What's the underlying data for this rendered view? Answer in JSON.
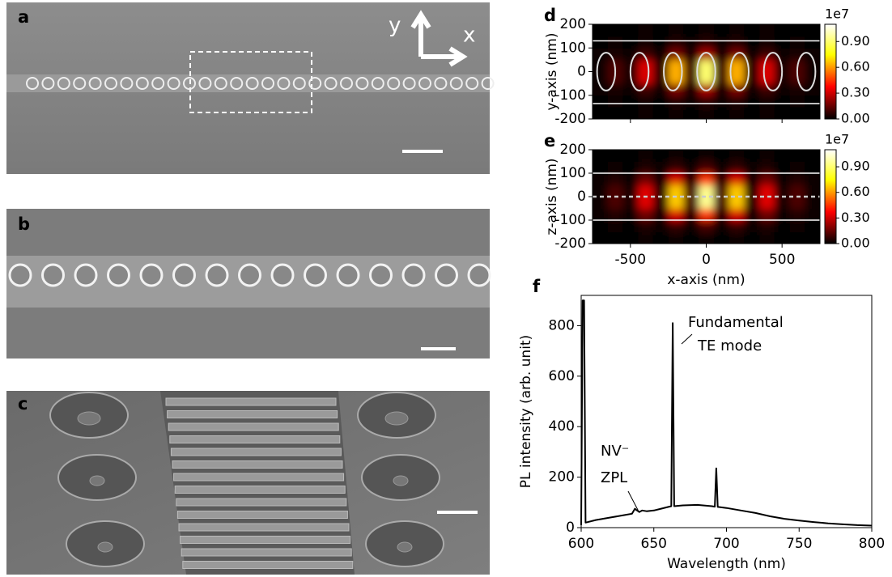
{
  "panels": [
    {
      "label": "a",
      "axis_labels": [
        "y",
        "x"
      ]
    },
    {
      "label": "b"
    },
    {
      "label": "c"
    }
  ],
  "chart_data": [
    {
      "type": "heatmap",
      "label": "d",
      "ylabel": "y-axis (nm)",
      "x": [
        -700,
        -600,
        -500,
        -400,
        -300,
        -200,
        -100,
        0,
        100,
        200,
        300,
        400,
        500,
        600,
        700
      ],
      "y": [
        -175,
        -125,
        -75,
        -25,
        25,
        75,
        125,
        175
      ],
      "z": [
        [
          0,
          0,
          0,
          0.01,
          0,
          0.01,
          0,
          0.02,
          0,
          0.01,
          0,
          0.01,
          0,
          0,
          0
        ],
        [
          0,
          0.01,
          0,
          0.02,
          0,
          0.04,
          0.01,
          0.05,
          0.01,
          0.04,
          0,
          0.02,
          0,
          0.01,
          0
        ],
        [
          0.01,
          0.03,
          0.01,
          0.09,
          0.01,
          0.18,
          0.03,
          0.25,
          0.03,
          0.18,
          0.01,
          0.09,
          0.01,
          0.03,
          0.01
        ],
        [
          0.02,
          0.11,
          0.03,
          0.32,
          0.05,
          0.63,
          0.09,
          0.9,
          0.09,
          0.63,
          0.05,
          0.32,
          0.03,
          0.11,
          0.02
        ],
        [
          0.02,
          0.11,
          0.03,
          0.32,
          0.05,
          0.63,
          0.09,
          0.9,
          0.09,
          0.63,
          0.05,
          0.32,
          0.03,
          0.11,
          0.02
        ],
        [
          0.01,
          0.03,
          0.01,
          0.09,
          0.01,
          0.18,
          0.03,
          0.25,
          0.03,
          0.18,
          0.01,
          0.09,
          0.01,
          0.03,
          0.01
        ],
        [
          0,
          0.01,
          0,
          0.02,
          0,
          0.04,
          0.01,
          0.05,
          0.01,
          0.04,
          0,
          0.02,
          0,
          0.01,
          0
        ],
        [
          0,
          0,
          0,
          0.01,
          0,
          0.01,
          0,
          0.02,
          0,
          0.01,
          0,
          0.01,
          0,
          0,
          0
        ]
      ],
      "colormap": "hot",
      "zlim": [
        0,
        1.1
      ],
      "zticks": [
        {
          "value": 0,
          "label": "0.00"
        },
        {
          "value": 0.3,
          "label": "0.30"
        },
        {
          "value": 0.6,
          "label": "0.60"
        },
        {
          "value": 0.9,
          "label": "0.90"
        }
      ],
      "colorbar_offset": "1e7",
      "xlim": [
        -750,
        750
      ],
      "xticks": [
        -500,
        0,
        500
      ],
      "xtick_labels": false,
      "ylim": [
        -200,
        200
      ],
      "yticks": [
        -200,
        -100,
        0,
        100,
        200
      ],
      "hlines": [
        130,
        -135
      ],
      "holes": {
        "x": [
          -660,
          -440,
          -220,
          0,
          220,
          440,
          660
        ],
        "rx": 60,
        "ry": 80
      }
    },
    {
      "type": "heatmap",
      "label": "e",
      "ylabel": "z-axis (nm)",
      "xlabel": "x-axis (nm)",
      "x": [
        -700,
        -600,
        -500,
        -400,
        -300,
        -200,
        -100,
        0,
        100,
        200,
        300,
        400,
        500,
        600,
        700
      ],
      "y": [
        -175,
        -125,
        -75,
        -25,
        25,
        75,
        125,
        175
      ],
      "z": [
        [
          0,
          0,
          0,
          0.01,
          0,
          0.01,
          0,
          0.02,
          0,
          0.01,
          0,
          0.01,
          0,
          0,
          0
        ],
        [
          0,
          0.01,
          0,
          0.04,
          0.01,
          0.07,
          0.01,
          0.1,
          0.01,
          0.07,
          0.01,
          0.04,
          0,
          0.01,
          0
        ],
        [
          0.01,
          0.05,
          0.01,
          0.16,
          0.02,
          0.32,
          0.05,
          0.45,
          0.05,
          0.32,
          0.02,
          0.16,
          0.01,
          0.05,
          0.01
        ],
        [
          0.02,
          0.11,
          0.03,
          0.33,
          0.05,
          0.67,
          0.1,
          0.95,
          0.1,
          0.67,
          0.05,
          0.33,
          0.03,
          0.11,
          0.02
        ],
        [
          0.02,
          0.11,
          0.03,
          0.33,
          0.05,
          0.67,
          0.1,
          0.95,
          0.1,
          0.67,
          0.05,
          0.33,
          0.03,
          0.11,
          0.02
        ],
        [
          0.01,
          0.05,
          0.01,
          0.16,
          0.02,
          0.32,
          0.05,
          0.45,
          0.05,
          0.32,
          0.02,
          0.16,
          0.01,
          0.05,
          0.01
        ],
        [
          0,
          0.01,
          0,
          0.04,
          0.01,
          0.07,
          0.01,
          0.1,
          0.01,
          0.07,
          0.01,
          0.04,
          0,
          0.01,
          0
        ],
        [
          0,
          0,
          0,
          0.01,
          0,
          0.01,
          0,
          0.02,
          0,
          0.01,
          0,
          0.01,
          0,
          0,
          0
        ]
      ],
      "colormap": "hot",
      "zlim": [
        0,
        1.1
      ],
      "zticks": [
        {
          "value": 0,
          "label": "0.00"
        },
        {
          "value": 0.3,
          "label": "0.30"
        },
        {
          "value": 0.6,
          "label": "0.60"
        },
        {
          "value": 0.9,
          "label": "0.90"
        }
      ],
      "colorbar_offset": "1e7",
      "xlim": [
        -750,
        750
      ],
      "xticks": [
        -500,
        0,
        500
      ],
      "ylim": [
        -200,
        200
      ],
      "yticks": [
        -200,
        -100,
        0,
        100,
        200
      ],
      "hlines": [
        100,
        -100
      ],
      "dashed_hline": 0
    },
    {
      "type": "line",
      "label": "f",
      "xlabel": "Wavelength (nm)",
      "ylabel": "PL intensity (arb. unit)",
      "x": [
        600,
        601,
        602,
        603,
        610,
        620,
        630,
        635,
        637,
        638,
        640,
        642,
        645,
        650,
        655,
        660,
        662,
        663,
        664,
        670,
        680,
        690,
        692,
        693,
        694,
        700,
        710,
        720,
        730,
        740,
        750,
        760,
        770,
        780,
        790,
        800
      ],
      "values": [
        10,
        900,
        900,
        20,
        30,
        40,
        50,
        55,
        75,
        70,
        62,
        68,
        65,
        68,
        75,
        82,
        85,
        810,
        85,
        88,
        90,
        85,
        83,
        235,
        82,
        78,
        68,
        58,
        45,
        35,
        28,
        22,
        17,
        13,
        10,
        8
      ],
      "color": "#000000",
      "xlim": [
        600,
        800
      ],
      "ylim": [
        0,
        920
      ],
      "xticks": [
        600,
        650,
        700,
        750,
        800
      ],
      "yticks": [
        0,
        200,
        400,
        600,
        800
      ],
      "annotations": [
        {
          "lines": [
            "Fundamental",
            "TE mode"
          ]
        },
        {
          "lines": [
            "NV⁻",
            "ZPL"
          ]
        }
      ]
    }
  ]
}
